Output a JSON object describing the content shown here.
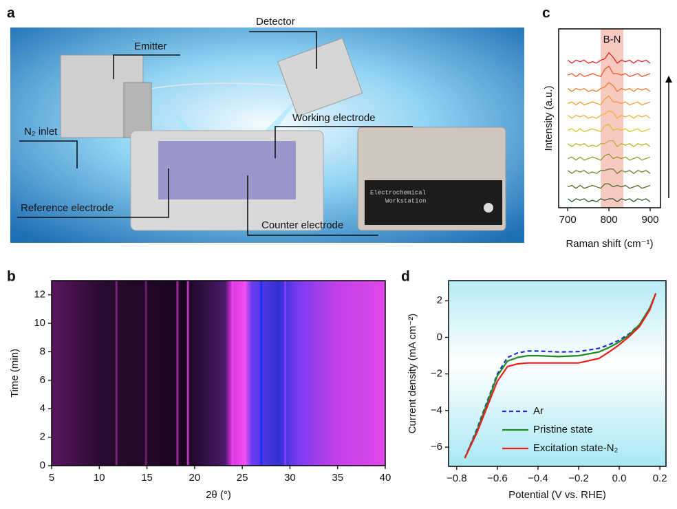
{
  "illustration": {
    "panel_label": "a",
    "labels": {
      "emitter": "Emitter",
      "detector": "Detector",
      "n2_inlet": "N₂ inlet",
      "working_electrode": "Working electrode",
      "reference_electrode": "Reference electrode",
      "counter_electrode": "Counter electrode",
      "device": [
        "Electrochemical",
        "Workstation"
      ]
    }
  },
  "chart_data": [
    {
      "type": "heatmap",
      "panel_label": "b",
      "x_label": "2θ (°)",
      "y_label": "Time (min)",
      "xlim": [
        5,
        40
      ],
      "xticks": [
        5,
        10,
        15,
        20,
        25,
        30,
        35,
        40
      ],
      "ylim": [
        0,
        13
      ],
      "yticks": [
        0,
        2,
        4,
        6,
        8,
        10,
        12
      ],
      "peaks": [
        {
          "x": 11.8,
          "color": "#8a2a8a"
        },
        {
          "x": 14.9,
          "color": "#7a2580"
        },
        {
          "x": 18.2,
          "color": "#b030b0"
        },
        {
          "x": 19.3,
          "color": "#d040d0"
        },
        {
          "x": 24.0,
          "color": "#e050f0"
        },
        {
          "x": 27.0,
          "color": "#1030ff"
        },
        {
          "x": 29.5,
          "color": "#8040ff"
        }
      ]
    },
    {
      "type": "line",
      "panel_label": "c",
      "x_label": "Raman shift (cm⁻¹)",
      "y_label": "Intensity (a.u.)",
      "xlim": [
        678,
        925
      ],
      "xticks": [
        700,
        800,
        900
      ],
      "ylim": [
        0,
        12
      ],
      "highlight": {
        "range": [
          780,
          835
        ],
        "label": "B-N",
        "color": "#f8c9c0"
      },
      "x": [
        700,
        710,
        720,
        730,
        740,
        750,
        760,
        770,
        780,
        790,
        800,
        810,
        820,
        830,
        840,
        850,
        860,
        870,
        880,
        890,
        900
      ],
      "series": [
        {
          "color": "#2c5a30",
          "values": [
            0.6,
            0.4,
            0.6,
            0.5,
            0.6,
            0.4,
            0.5,
            0.4,
            0.6,
            0.5,
            0.6,
            0.6,
            0.4,
            0.6,
            0.5,
            0.6,
            0.4,
            0.6,
            0.5,
            0.6,
            0.4
          ]
        },
        {
          "color": "#4d6b2a",
          "values": [
            1.4,
            1.5,
            1.3,
            1.5,
            1.3,
            1.4,
            1.5,
            1.4,
            1.3,
            1.6,
            1.6,
            1.4,
            1.5,
            1.4,
            1.5,
            1.3,
            1.4,
            1.5,
            1.3,
            1.4,
            1.5
          ]
        },
        {
          "color": "#6f812c",
          "values": [
            2.5,
            2.3,
            2.5,
            2.4,
            2.5,
            2.3,
            2.4,
            2.3,
            2.5,
            2.5,
            2.6,
            2.6,
            2.3,
            2.5,
            2.4,
            2.5,
            2.3,
            2.5,
            2.4,
            2.5,
            2.3
          ]
        },
        {
          "color": "#94992c",
          "values": [
            3.3,
            3.4,
            3.2,
            3.4,
            3.2,
            3.3,
            3.4,
            3.3,
            3.2,
            3.5,
            3.6,
            3.3,
            3.4,
            3.3,
            3.4,
            3.2,
            3.3,
            3.4,
            3.2,
            3.3,
            3.4
          ]
        },
        {
          "color": "#bbb22e",
          "values": [
            4.3,
            4.1,
            4.3,
            4.2,
            4.3,
            4.1,
            4.2,
            4.1,
            4.3,
            4.3,
            4.5,
            4.5,
            4.1,
            4.3,
            4.2,
            4.3,
            4.1,
            4.3,
            4.2,
            4.3,
            4.1
          ]
        },
        {
          "color": "#dcc12f",
          "values": [
            5.2,
            5.3,
            5.1,
            5.3,
            5.1,
            5.2,
            5.3,
            5.2,
            5.1,
            5.5,
            5.6,
            5.2,
            5.3,
            5.2,
            5.3,
            5.1,
            5.2,
            5.3,
            5.1,
            5.2,
            5.3
          ]
        },
        {
          "color": "#eab136",
          "values": [
            6.2,
            6.0,
            6.2,
            6.1,
            6.2,
            6.0,
            6.1,
            6.0,
            6.2,
            6.3,
            6.5,
            6.4,
            6.0,
            6.2,
            6.1,
            6.2,
            6.0,
            6.2,
            6.1,
            6.2,
            6.0
          ]
        },
        {
          "color": "#f19b30",
          "values": [
            7.0,
            7.1,
            6.9,
            7.1,
            6.9,
            7.0,
            7.1,
            7.0,
            6.9,
            7.3,
            7.5,
            7.1,
            7.1,
            7.0,
            7.1,
            6.9,
            7.0,
            7.1,
            6.9,
            7.0,
            7.1
          ]
        },
        {
          "color": "#f07a28",
          "values": [
            8.0,
            7.8,
            8.0,
            7.9,
            8.0,
            7.8,
            7.9,
            7.8,
            8.0,
            8.1,
            8.4,
            8.2,
            7.8,
            8.0,
            7.9,
            8.0,
            7.8,
            8.0,
            7.9,
            8.0,
            7.8
          ]
        },
        {
          "color": "#ec5624",
          "values": [
            8.9,
            9.0,
            8.8,
            9.0,
            8.8,
            8.9,
            9.0,
            8.9,
            8.8,
            9.3,
            9.5,
            9.0,
            9.0,
            8.9,
            9.0,
            8.8,
            8.9,
            9.0,
            8.8,
            8.9,
            9.0
          ]
        },
        {
          "color": "#e6241c",
          "values": [
            9.9,
            9.7,
            9.9,
            9.8,
            9.9,
            9.7,
            9.8,
            9.7,
            9.9,
            10.0,
            10.4,
            10.1,
            9.7,
            9.9,
            9.8,
            9.9,
            9.7,
            9.9,
            9.8,
            9.9,
            9.7
          ]
        }
      ]
    },
    {
      "type": "line",
      "panel_label": "d",
      "x_label": "Potential (V vs. RHE)",
      "y_label": "Current density (mA cm⁻²)",
      "xlim": [
        -0.84,
        0.23
      ],
      "xticks": [
        {
          "value": -0.8,
          "label": "−0.8"
        },
        {
          "value": -0.6,
          "label": "−0.6"
        },
        {
          "value": -0.4,
          "label": "−0.4"
        },
        {
          "value": -0.2,
          "label": "−0.2"
        },
        {
          "value": 0,
          "label": "0.0"
        },
        0.2
      ],
      "ylim": [
        -7.05,
        3.1
      ],
      "yticks": [
        {
          "value": -6,
          "label": "−6"
        },
        {
          "value": -4,
          "label": "−4"
        },
        {
          "value": -2,
          "label": "−2"
        },
        0,
        2
      ],
      "x": [
        -0.76,
        -0.7,
        -0.65,
        -0.6,
        -0.55,
        -0.5,
        -0.45,
        -0.4,
        -0.3,
        -0.2,
        -0.1,
        -0.05,
        0,
        0.05,
        0.1,
        0.15,
        0.18
      ],
      "series": [
        {
          "name": "Ar",
          "color": "#1f2fd0",
          "dash": true,
          "values": [
            -6.6,
            -5.0,
            -3.5,
            -2.0,
            -1.1,
            -0.85,
            -0.75,
            -0.75,
            -0.8,
            -0.78,
            -0.6,
            -0.4,
            -0.15,
            0.2,
            0.7,
            1.6,
            2.4
          ]
        },
        {
          "name": "Pristine state",
          "color": "#1f8a1f",
          "values": [
            -6.6,
            -5.1,
            -3.6,
            -2.1,
            -1.3,
            -1.1,
            -1.0,
            -1.0,
            -1.05,
            -1.0,
            -0.8,
            -0.55,
            -0.25,
            0.15,
            0.7,
            1.6,
            2.4
          ]
        },
        {
          "name": "Excitation state-N₂",
          "color": "#ee1c1c",
          "values": [
            -6.6,
            -5.2,
            -3.8,
            -2.4,
            -1.6,
            -1.45,
            -1.4,
            -1.4,
            -1.4,
            -1.4,
            -1.15,
            -0.8,
            -0.4,
            0.05,
            0.6,
            1.5,
            2.4
          ]
        }
      ]
    }
  ]
}
